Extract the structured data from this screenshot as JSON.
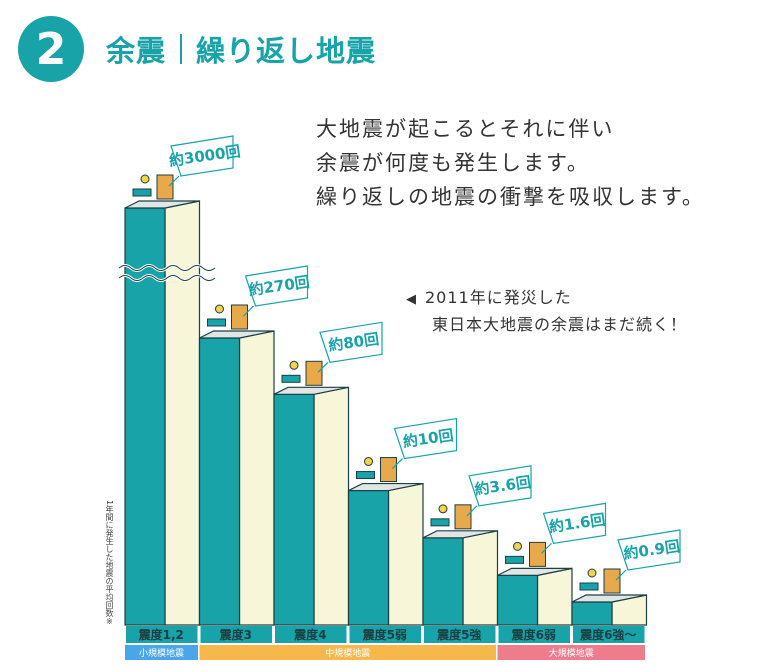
{
  "header": {
    "number": "2",
    "title_main": "余震",
    "title_sub": "繰り返し地震"
  },
  "intro": {
    "lines": [
      "大地震が起こるとそれに伴い",
      "余震が何度も発生します。",
      "繰り返しの地震の衝撃を吸収します。"
    ]
  },
  "note": {
    "line1": "2011年に発災した",
    "line2": "東日本大地震の余震はまだ続く！"
  },
  "colors": {
    "teal": "#17a3a8",
    "cream": "#f7f6d8",
    "orange": "#f6b84a",
    "pink": "#ee7c8a",
    "dark": "#1c3f44",
    "tag_text": "#cde9ea"
  },
  "chart_data": {
    "type": "bar",
    "categories": [
      "震度1,2",
      "震度3",
      "震度4",
      "震度5弱",
      "震度5強",
      "震度6弱",
      "震度6強〜"
    ],
    "values": [
      3000,
      270,
      80,
      10,
      3.6,
      1.6,
      0.9
    ],
    "value_labels": [
      "約3000回",
      "約270回",
      "約80回",
      "約10回",
      "約3.6回",
      "約1.6回",
      "約0.9回"
    ],
    "ylabel": "1年間に発生した地震の平均回数※",
    "groups": [
      {
        "label": "小規模地震",
        "from": 0,
        "to": 0,
        "color": "#4aa6e8"
      },
      {
        "label": "中規模地震",
        "from": 1,
        "to": 4,
        "color": "#f6b84a"
      },
      {
        "label": "大規模地震",
        "from": 5,
        "to": 6,
        "color": "#ee7c8a"
      }
    ],
    "scale": "broken (top bar truncated)"
  }
}
